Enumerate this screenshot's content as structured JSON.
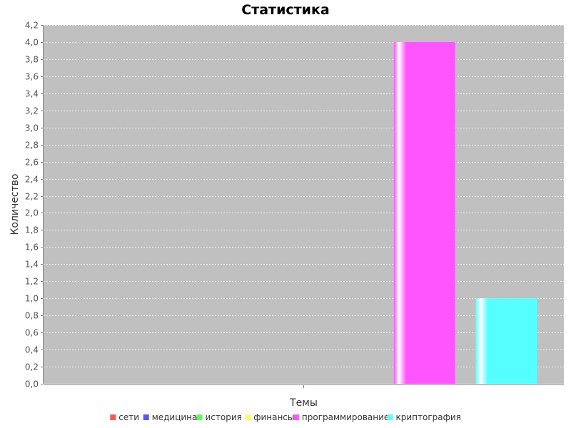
{
  "chart_data": {
    "type": "bar",
    "title": "Статистика",
    "xlabel": "Темы",
    "ylabel": "Количество",
    "ylim": [
      0,
      4.2
    ],
    "y_ticks": [
      "0,0",
      "0,2",
      "0,4",
      "0,6",
      "0,8",
      "1,0",
      "1,2",
      "1,4",
      "1,6",
      "1,8",
      "2,0",
      "2,2",
      "2,4",
      "2,6",
      "2,8",
      "3,0",
      "3,2",
      "3,4",
      "3,6",
      "3,8",
      "4,0",
      "4,2"
    ],
    "grid": true,
    "legend_position": "bottom",
    "series": [
      {
        "name": "сети",
        "value": 0,
        "color": "#ff5555"
      },
      {
        "name": "медицина",
        "value": 0,
        "color": "#5555ff"
      },
      {
        "name": "история",
        "value": 0,
        "color": "#55ff55"
      },
      {
        "name": "финансы",
        "value": 0,
        "color": "#ffff55"
      },
      {
        "name": "программирование",
        "value": 4,
        "color": "#ff55ff"
      },
      {
        "name": "криптография",
        "value": 1,
        "color": "#55ffff"
      }
    ],
    "plot_background": "#c0c0c0"
  }
}
